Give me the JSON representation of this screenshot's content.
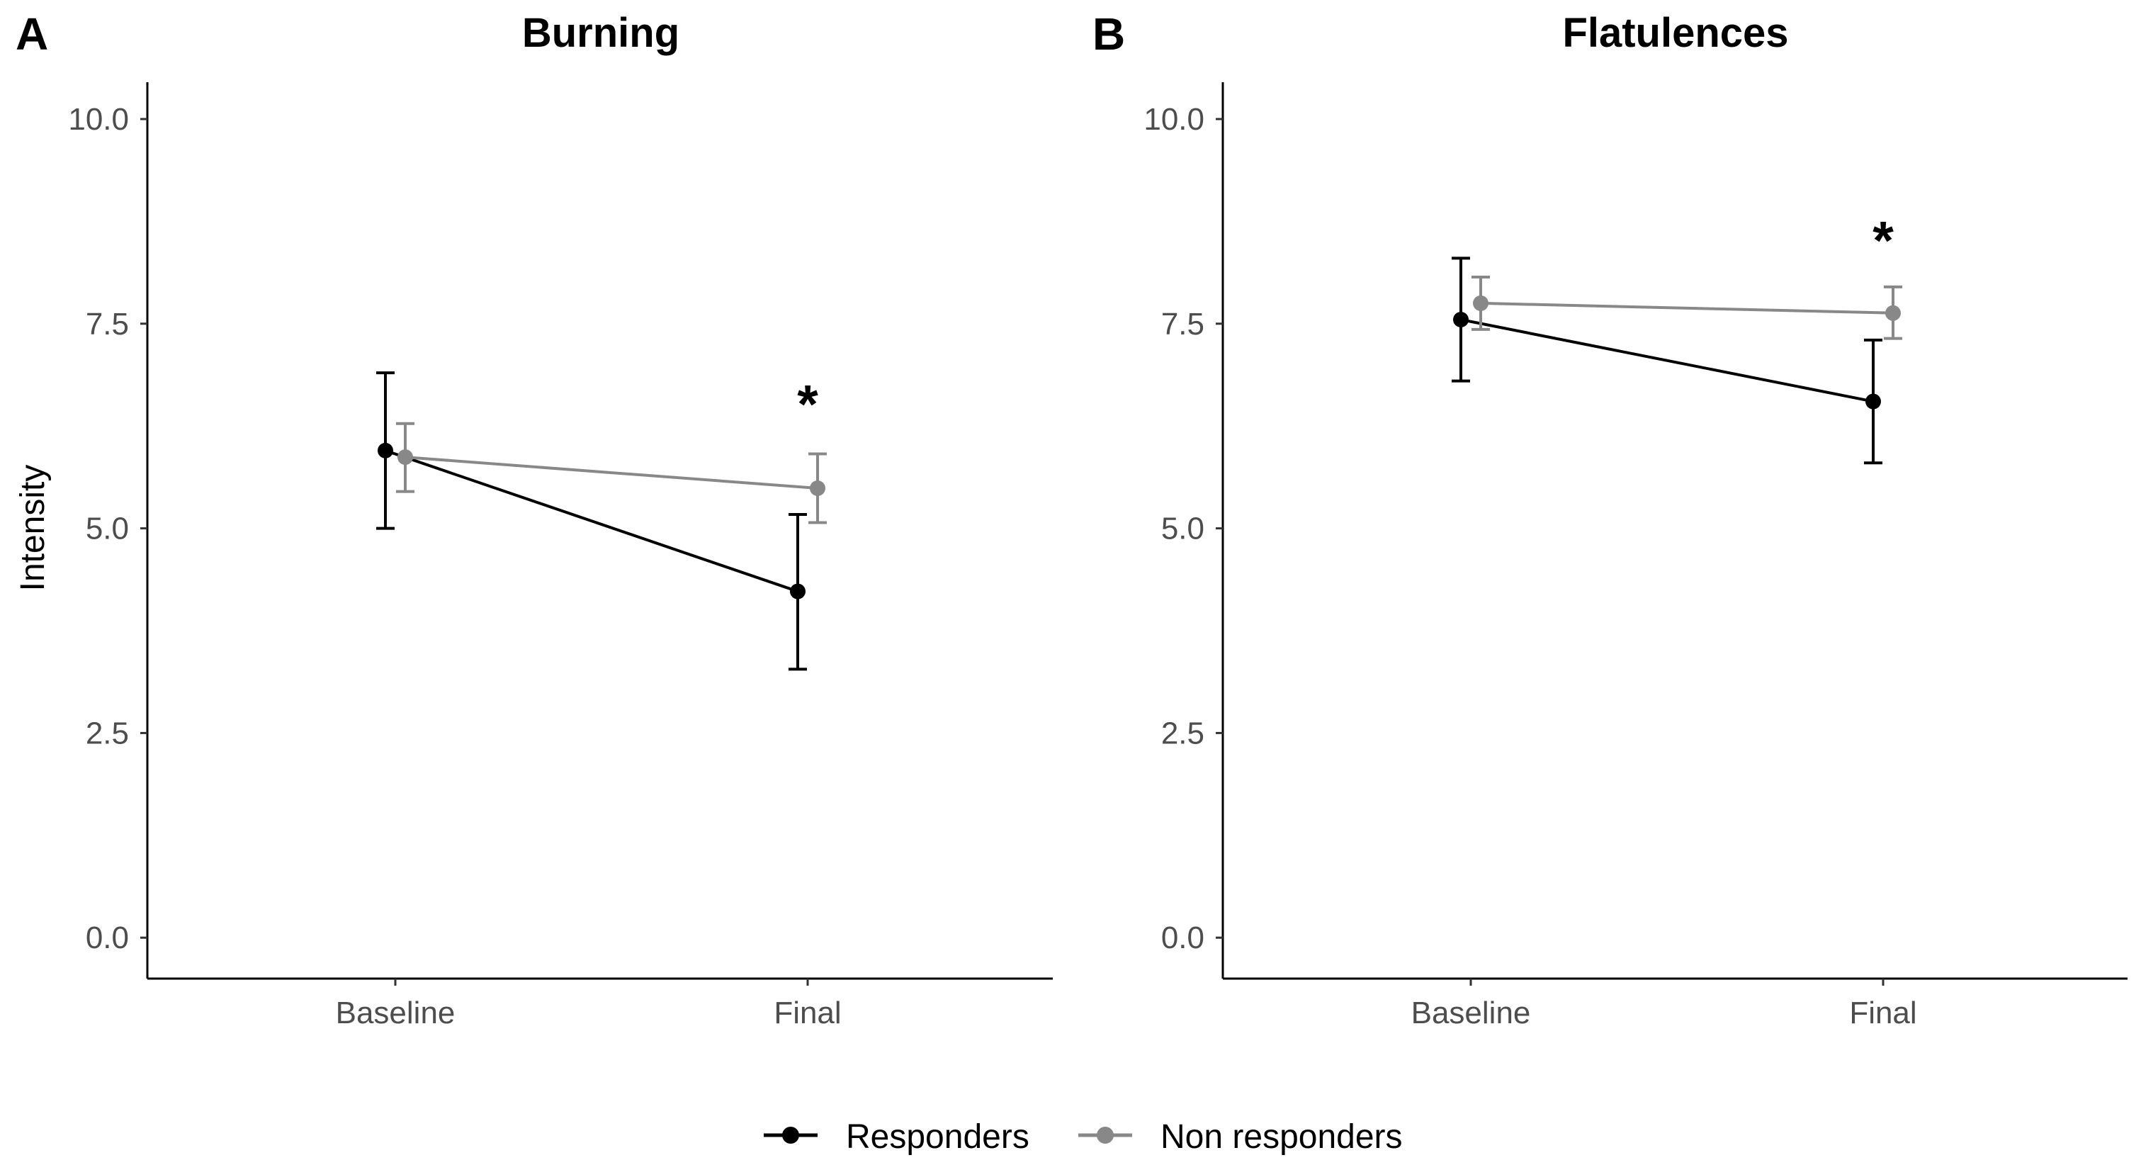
{
  "chart_data": [
    {
      "type": "line",
      "panel": "A",
      "title": "Burning",
      "xlabel": "",
      "ylabel": "Intensity",
      "categories": [
        "Baseline",
        "Final"
      ],
      "ylim": [
        -0.5,
        10.45
      ],
      "yticks": [
        0.0,
        2.5,
        5.0,
        7.5,
        10.0
      ],
      "ytick_labels": [
        "0.0",
        "2.5",
        "5.0",
        "7.5",
        "10.0"
      ],
      "series": [
        {
          "name": "Responders",
          "color": "#000000",
          "values": [
            5.95,
            4.23
          ],
          "lower": [
            5.0,
            3.28
          ],
          "upper": [
            6.9,
            5.17
          ]
        },
        {
          "name": "Non responders",
          "color": "#888888",
          "values": [
            5.87,
            5.49
          ],
          "lower": [
            5.45,
            5.07
          ],
          "upper": [
            6.28,
            5.91
          ]
        }
      ],
      "annotations": [
        {
          "text": "*",
          "category": "Final",
          "y": 6.55
        }
      ]
    },
    {
      "type": "line",
      "panel": "B",
      "title": "Flatulences",
      "xlabel": "",
      "ylabel": "",
      "categories": [
        "Baseline",
        "Final"
      ],
      "ylim": [
        -0.5,
        10.45
      ],
      "yticks": [
        0.0,
        2.5,
        5.0,
        7.5,
        10.0
      ],
      "ytick_labels": [
        "0.0",
        "2.5",
        "5.0",
        "7.5",
        "10.0"
      ],
      "series": [
        {
          "name": "Responders",
          "color": "#000000",
          "values": [
            7.55,
            6.55
          ],
          "lower": [
            6.8,
            5.8
          ],
          "upper": [
            8.3,
            7.3
          ]
        },
        {
          "name": "Non responders",
          "color": "#888888",
          "values": [
            7.75,
            7.63
          ],
          "lower": [
            7.43,
            7.32
          ],
          "upper": [
            8.07,
            7.95
          ]
        }
      ],
      "annotations": [
        {
          "text": "*",
          "category": "Final",
          "y": 8.55
        }
      ]
    }
  ],
  "legend": {
    "placement": "bottom",
    "items": [
      {
        "label": "Responders",
        "color": "#000000"
      },
      {
        "label": "Non responders",
        "color": "#888888"
      }
    ]
  }
}
